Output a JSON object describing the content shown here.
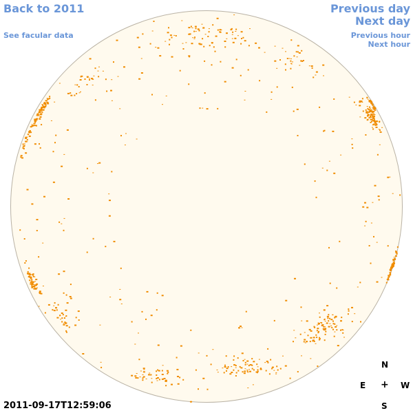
{
  "nav": {
    "back_label": "Back to 2011",
    "facular_label": "See facular data",
    "prev_day_label": "Previous day",
    "next_day_label": "Next day",
    "prev_hour_label": "Previous hour",
    "next_hour_label": "Next hour"
  },
  "timestamp": "2011-09-17T12:59:06",
  "compass": {
    "north": "N",
    "south": "S",
    "east": "E",
    "west": "W",
    "center": "+"
  },
  "colors": {
    "link": "#6a96d8",
    "disk_fill": "#fffaee",
    "disk_edge": "#b9b2a4",
    "faculae": "#f08c00"
  },
  "disk": {
    "regions": [
      {
        "lat": 30,
        "lon": -78,
        "spread_lat": 8,
        "spread_lon": 6,
        "count": 70
      },
      {
        "lat": 20,
        "lon": -80,
        "spread_lat": 8,
        "spread_lon": 5,
        "count": 30
      },
      {
        "lat": -22,
        "lon": -75,
        "spread_lat": 6,
        "spread_lon": 6,
        "count": 55
      },
      {
        "lat": -35,
        "lon": -65,
        "spread_lat": 8,
        "spread_lon": 8,
        "count": 30
      },
      {
        "lat": 28,
        "lon": 72,
        "spread_lat": 7,
        "spread_lon": 8,
        "count": 80
      },
      {
        "lat": 32,
        "lon": 82,
        "spread_lat": 4,
        "spread_lon": 4,
        "count": 30
      },
      {
        "lat": -18,
        "lon": 83,
        "spread_lat": 6,
        "spread_lon": 4,
        "count": 60
      },
      {
        "lat": -38,
        "lon": 50,
        "spread_lat": 10,
        "spread_lon": 20,
        "count": 90
      },
      {
        "lat": -55,
        "lon": 20,
        "spread_lat": 8,
        "spread_lon": 30,
        "count": 70
      },
      {
        "lat": -60,
        "lon": -30,
        "spread_lat": 8,
        "spread_lon": 30,
        "count": 45
      },
      {
        "lat": 62,
        "lon": 0,
        "spread_lat": 10,
        "spread_lon": 45,
        "count": 70
      },
      {
        "lat": 40,
        "lon": -55,
        "spread_lat": 10,
        "spread_lon": 15,
        "count": 25
      },
      {
        "lat": 48,
        "lon": 45,
        "spread_lat": 10,
        "spread_lon": 20,
        "count": 30
      }
    ]
  }
}
